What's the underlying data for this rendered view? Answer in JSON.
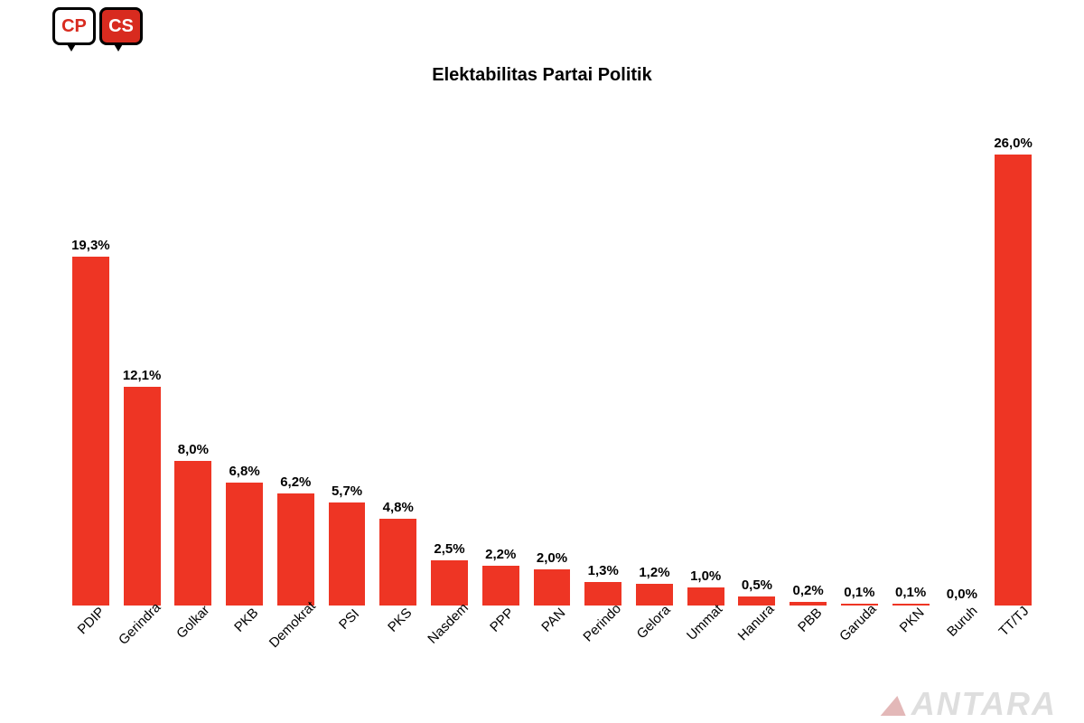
{
  "logo": {
    "left": "CP",
    "right": "CS"
  },
  "chart": {
    "type": "bar",
    "title": "Elektabilitas Partai Politik",
    "title_fontsize": 20,
    "label_fontsize": 15,
    "value_fontsize": 15,
    "bar_color": "#ee3524",
    "text_color": "#000000",
    "background_color": "#ffffff",
    "ymax": 26.0,
    "bar_width_ratio": 0.72,
    "x_label_rotation_deg": -45,
    "categories": [
      "PDIP",
      "Gerindra",
      "Golkar",
      "PKB",
      "Demokrat",
      "PSI",
      "PKS",
      "Nasdem",
      "PPP",
      "PAN",
      "Perindo",
      "Gelora",
      "Ummat",
      "Hanura",
      "PBB",
      "Garuda",
      "PKN",
      "Buruh",
      "TT/TJ"
    ],
    "values": [
      19.3,
      12.1,
      8.0,
      6.8,
      6.2,
      5.7,
      4.8,
      2.5,
      2.2,
      2.0,
      1.3,
      1.2,
      1.0,
      0.5,
      0.2,
      0.1,
      0.1,
      0.0,
      26.0
    ],
    "value_labels": [
      "19,3%",
      "12,1%",
      "8,0%",
      "6,8%",
      "6,2%",
      "5,7%",
      "4,8%",
      "2,5%",
      "2,2%",
      "2,0%",
      "1,3%",
      "1,2%",
      "1,0%",
      "0,5%",
      "0,2%",
      "0,1%",
      "0,1%",
      "0,0%",
      "26,0%"
    ]
  },
  "watermark": "ANTARA"
}
